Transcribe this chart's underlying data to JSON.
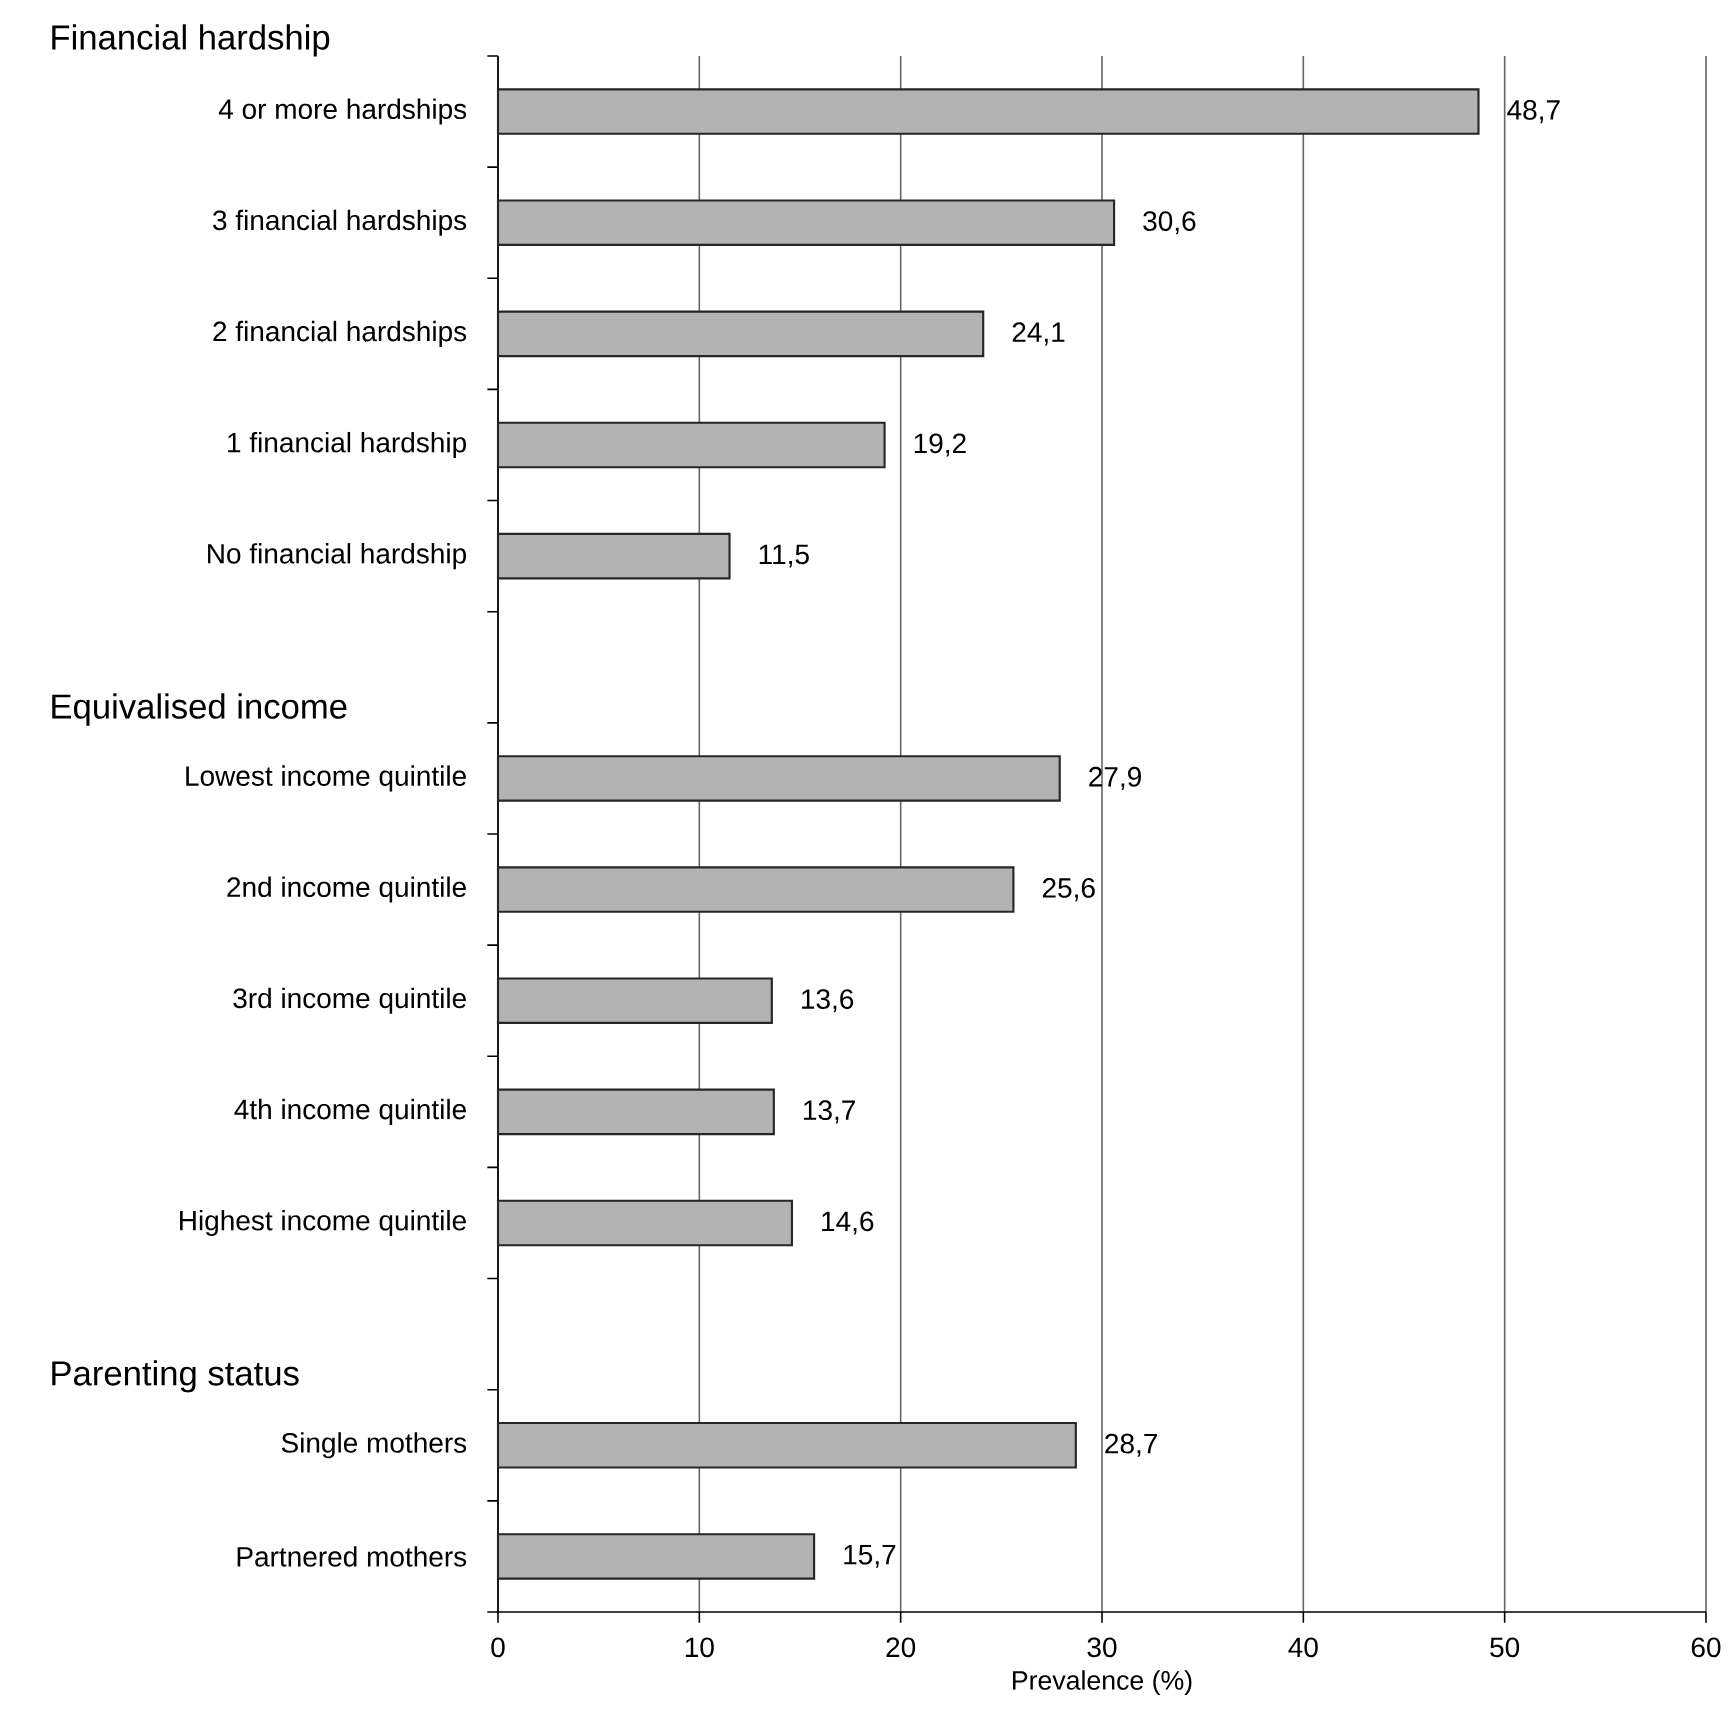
{
  "chart_data": {
    "type": "bar",
    "orientation": "horizontal",
    "xlabel": "Prevalence (%)",
    "annotations": [
      "Financial hardship",
      "Equivalised income",
      "Parenting status"
    ],
    "categories": [
      "4 or more hardships",
      "3 financial hardships",
      "2 financial hardships",
      "1 financial hardship",
      "No financial hardship",
      null,
      "Lowest income quintile",
      "2nd income quintile",
      "3rd income quintile",
      "4th income quintile",
      "Highest income quintile",
      null,
      "Single mothers",
      "Partnered mothers"
    ],
    "values": [
      48.7,
      30.6,
      24.1,
      19.2,
      11.5,
      null,
      27.9,
      25.6,
      13.6,
      13.7,
      14.6,
      null,
      28.7,
      15.7
    ],
    "value_labels": [
      "48,7",
      "30,6",
      "24,1",
      "19,2",
      "11,5",
      null,
      "27,9",
      "25,6",
      "13,6",
      "13,7",
      "14,6",
      null,
      "28,7",
      "15,7"
    ],
    "color": "#b3b3b3",
    "xlim": [
      0,
      60
    ],
    "xticks": [
      0,
      10,
      20,
      30,
      40,
      50,
      60
    ],
    "grid": "x"
  }
}
